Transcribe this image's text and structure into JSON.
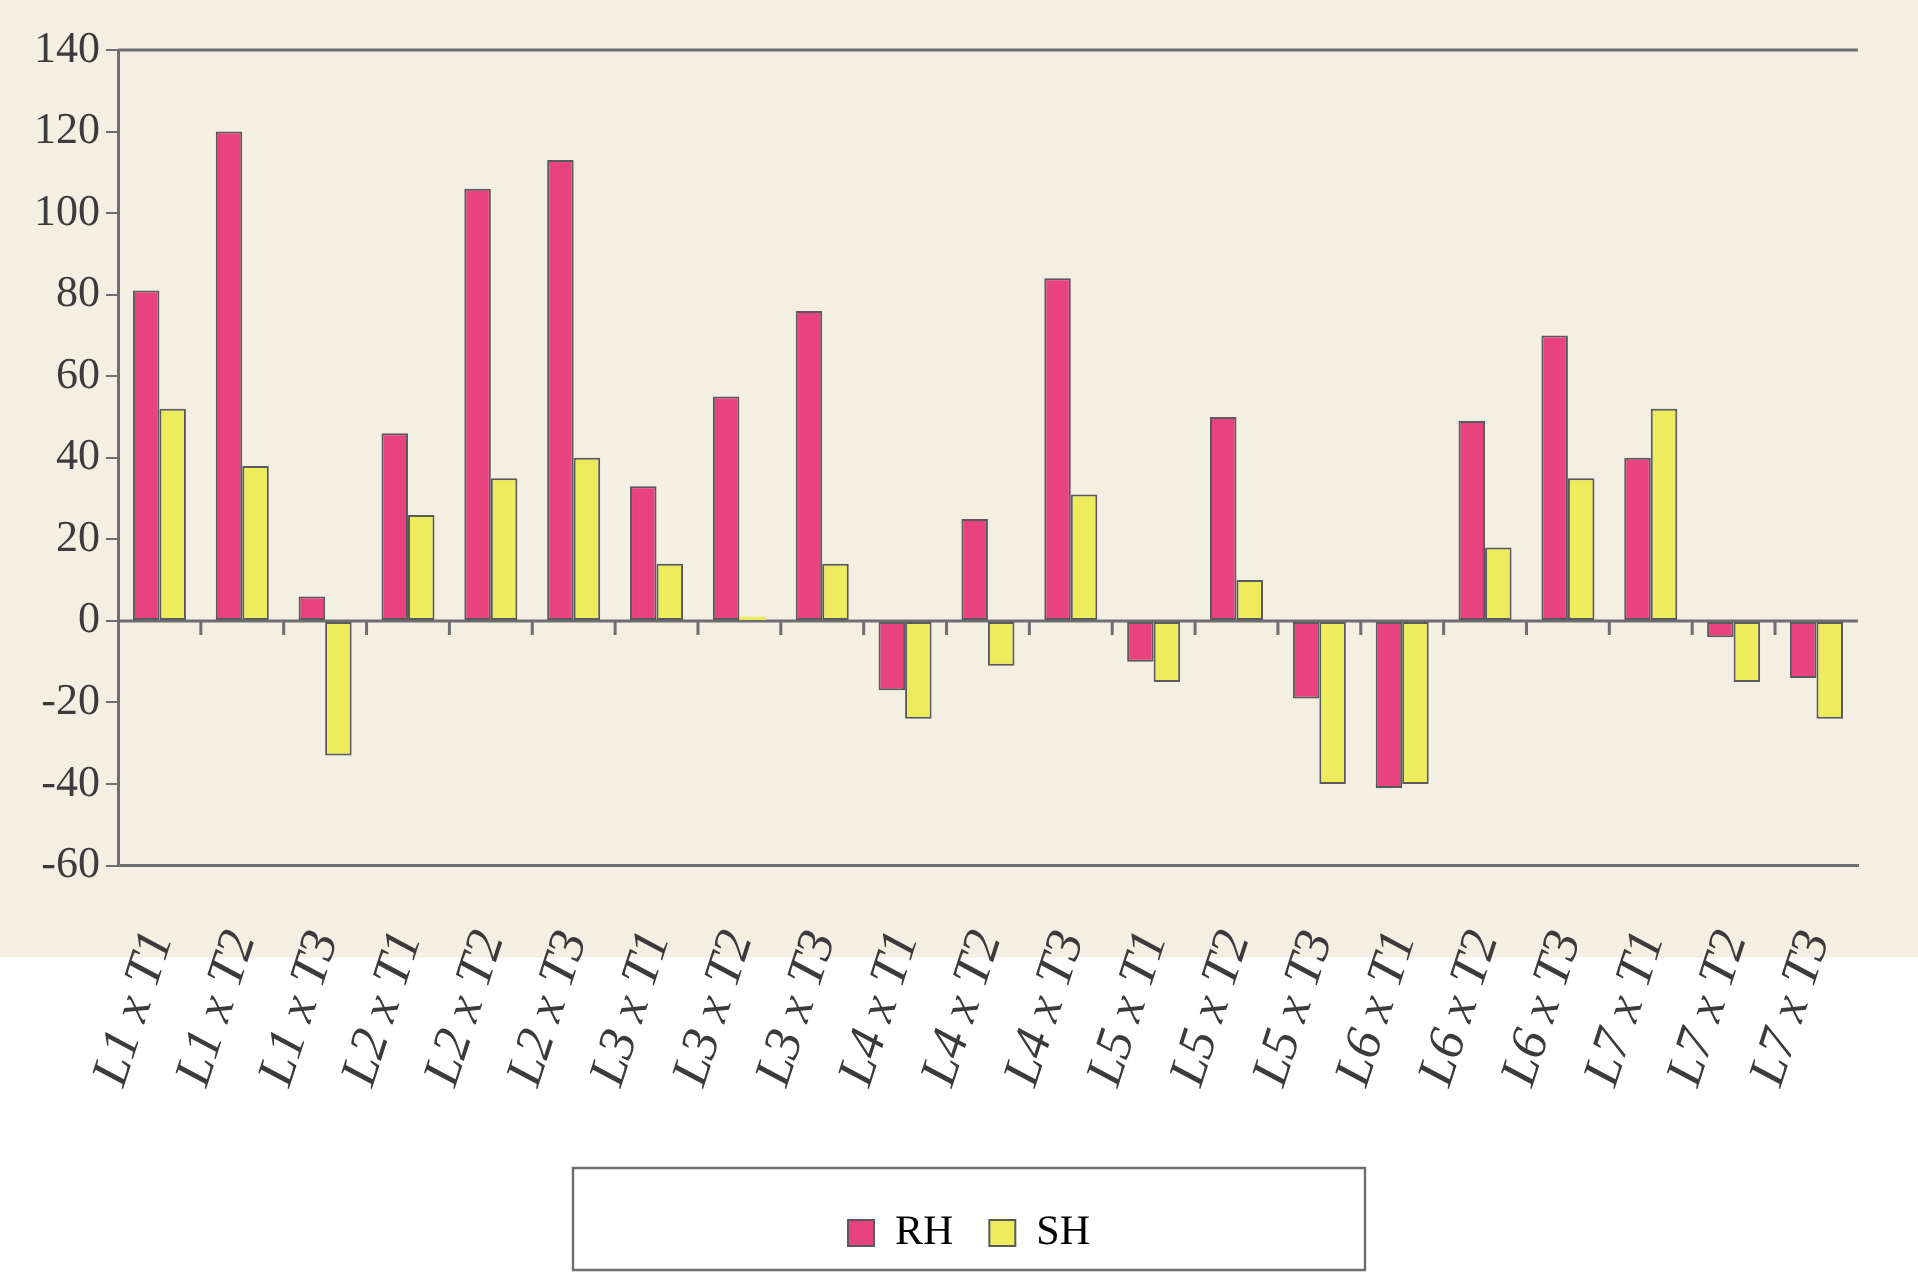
{
  "chart_data": {
    "type": "bar",
    "categories": [
      "L1 x T1",
      "L1 x T2",
      "L1 x T3",
      "L2 x T1",
      "L2 x T2",
      "L2 x T3",
      "L3 x T1",
      "L3 x T2",
      "L3 x T3",
      "L4 x T1",
      "L4 x T2",
      "L4 x T3",
      "L5 x T1",
      "L5 x T2",
      "L5 x T3",
      "L6 x T1",
      "L6 x T2",
      "L6 x T3",
      "L7 x T1",
      "L7 x T2",
      "L7 x T3"
    ],
    "series": [
      {
        "name": "RH",
        "color": "#e8437f",
        "values": [
          81,
          120,
          6,
          46,
          106,
          113,
          33,
          55,
          76,
          -17,
          25,
          84,
          -10,
          50,
          -19,
          -41,
          49,
          70,
          40,
          -4,
          -14
        ]
      },
      {
        "name": "SH",
        "color": "#eeec5c",
        "values": [
          52,
          38,
          -33,
          26,
          35,
          40,
          14,
          1,
          14,
          -24,
          -11,
          31,
          -15,
          10,
          -40,
          -40,
          18,
          35,
          52,
          -15,
          -24
        ]
      }
    ],
    "ylim": [
      -60,
      140
    ],
    "yticks": [
      -60,
      -40,
      -20,
      0,
      20,
      40,
      60,
      80,
      100,
      120,
      140
    ],
    "legend": "bottom"
  }
}
